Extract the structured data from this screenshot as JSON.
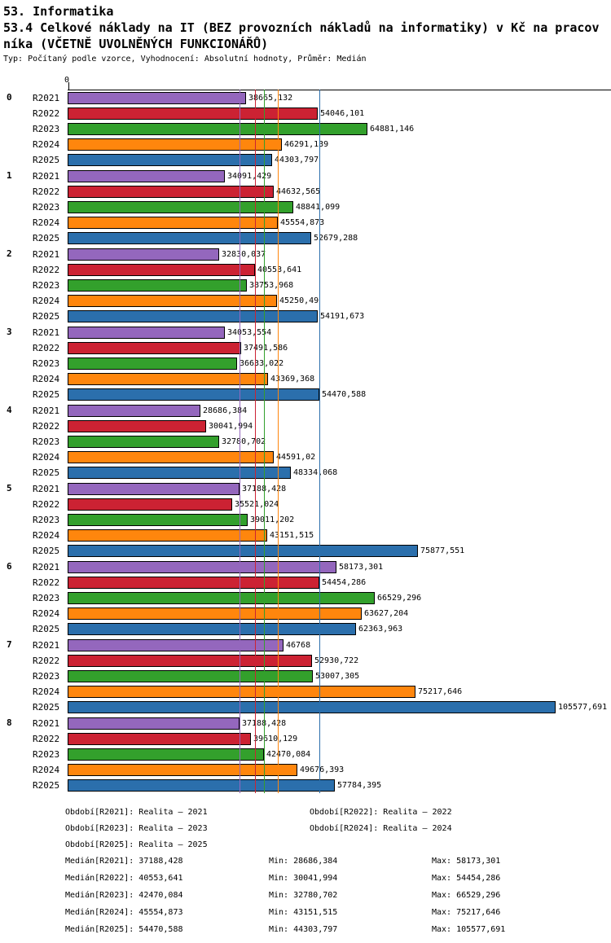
{
  "title": {
    "line1": "53. Informatika",
    "line2": "53.4 Celkové náklady na IT (BEZ provozních nákladů na informatiky) v Kč na pracov",
    "line3": "níka (VČETNĚ UVOLNĚNÝCH FUNKCIONÁŘŮ)",
    "subtitle": "Typ: Počítaný podle vzorce, Vyhodnocení: Absolutní hodnoty, Průměr: Medián"
  },
  "chart_data": {
    "type": "bar",
    "orientation": "horizontal",
    "axis_zero_label": "0",
    "xmax": 105577.691,
    "series": [
      "R2021",
      "R2022",
      "R2023",
      "R2024",
      "R2025"
    ],
    "series_colors": [
      "#9467bd",
      "#cc2233",
      "#33a02c",
      "#ff860d",
      "#2b6fac"
    ],
    "groups": [
      {
        "label": "0",
        "values": [
          38665.132,
          54046.101,
          64881.146,
          46291.139,
          44303.797
        ]
      },
      {
        "label": "1",
        "values": [
          34091.429,
          44632.565,
          48841.099,
          45554.873,
          52679.288
        ]
      },
      {
        "label": "2",
        "values": [
          32830.037,
          40553.641,
          38753.968,
          45250.49,
          54191.673
        ]
      },
      {
        "label": "3",
        "values": [
          34053.554,
          37491.586,
          36633.022,
          43369.368,
          54470.588
        ]
      },
      {
        "label": "4",
        "values": [
          28686.384,
          30041.994,
          32780.702,
          44591.02,
          48334.068
        ]
      },
      {
        "label": "5",
        "values": [
          37188.428,
          35521.024,
          39011.202,
          43151.515,
          75877.551
        ]
      },
      {
        "label": "6",
        "values": [
          58173.301,
          54454.286,
          66529.296,
          63627.204,
          62363.963
        ]
      },
      {
        "label": "7",
        "values": [
          46768,
          52930.722,
          53007.305,
          75217.646,
          105577.691
        ]
      },
      {
        "label": "8",
        "values": [
          37188.428,
          39610.129,
          42470.084,
          49676.393,
          57784.395
        ]
      }
    ],
    "medians": [
      37188.428,
      40553.641,
      42470.084,
      45554.873,
      54470.588
    ]
  },
  "legend": [
    "Období[R2021]: Realita – 2021",
    "Období[R2022]: Realita – 2022",
    "Období[R2023]: Realita – 2023",
    "Období[R2024]: Realita – 2024",
    "Období[R2025]: Realita – 2025"
  ],
  "stats": [
    {
      "median": "Medián[R2021]: 37188,428",
      "min": "Min: 28686,384",
      "max": "Max: 58173,301"
    },
    {
      "median": "Medián[R2022]: 40553,641",
      "min": "Min: 30041,994",
      "max": "Max: 54454,286"
    },
    {
      "median": "Medián[R2023]: 42470,084",
      "min": "Min: 32780,702",
      "max": "Max: 66529,296"
    },
    {
      "median": "Medián[R2024]: 45554,873",
      "min": "Min: 43151,515",
      "max": "Max: 75217,646"
    },
    {
      "median": "Medián[R2025]: 54470,588",
      "min": "Min: 44303,797",
      "max": "Max: 105577,691"
    }
  ]
}
